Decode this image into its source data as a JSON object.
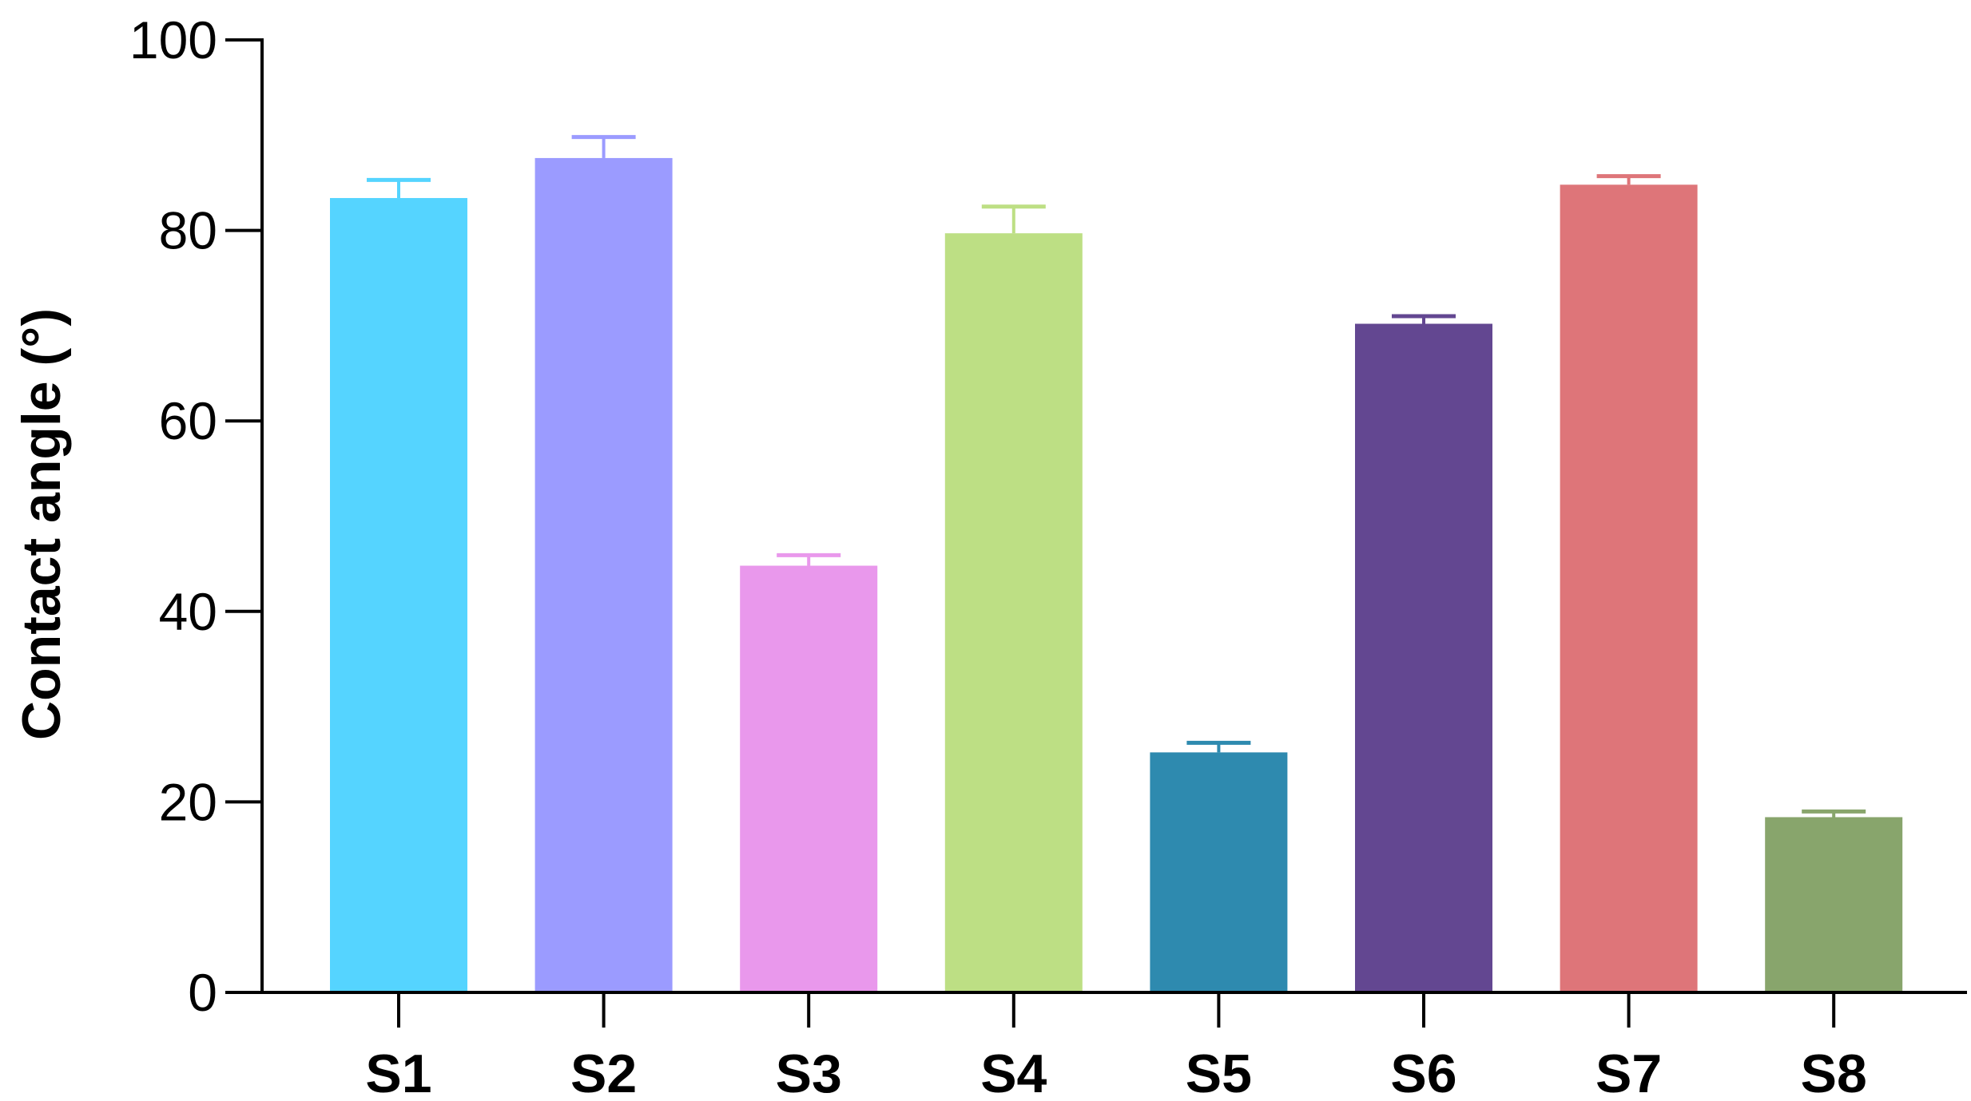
{
  "chart_data": {
    "type": "bar",
    "title": "",
    "xlabel": "",
    "ylabel": "Contact angle (°)",
    "ylim": [
      0,
      100
    ],
    "yticks": [
      0,
      20,
      40,
      60,
      80,
      100
    ],
    "grid": false,
    "legend": "none",
    "error_bars": "upper",
    "categories": [
      "S1",
      "S2",
      "S3",
      "S4",
      "S5",
      "S6",
      "S7",
      "S8"
    ],
    "values": [
      83.4,
      87.6,
      44.8,
      79.7,
      25.2,
      70.2,
      84.8,
      18.4
    ],
    "errors": [
      1.9,
      2.2,
      1.1,
      2.8,
      1.0,
      0.8,
      0.9,
      0.6
    ],
    "colors": [
      "#55D4FF",
      "#9B9BFF",
      "#E998EC",
      "#BDDF84",
      "#2E8AAF",
      "#634791",
      "#DE7579",
      "#88A56C"
    ]
  }
}
